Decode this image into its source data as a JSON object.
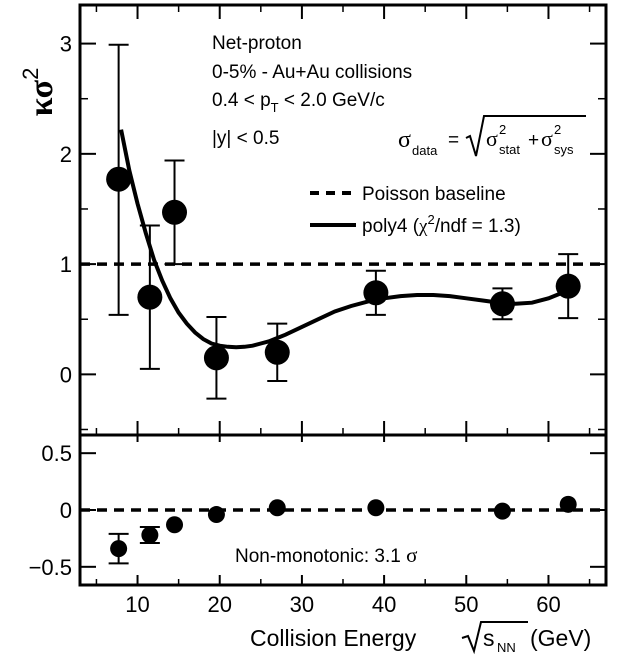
{
  "chart_data": {
    "type": "scatter",
    "xlabel": "Collision Energy",
    "xlabel_unit": "(GeV)",
    "xlabel_sqrt_base": "s",
    "xlabel_sqrt_sub": "NN",
    "xlim": [
      3,
      67
    ],
    "x_ticks": [
      10,
      20,
      30,
      40,
      50,
      60
    ],
    "upper": {
      "ylabel_kappa": "κ",
      "ylabel_sigma": "σ",
      "ylabel_sup": "2",
      "ylim": [
        -0.55,
        3.35
      ],
      "y_ticks": [
        0,
        1,
        2,
        3
      ],
      "points": [
        {
          "x": 7.7,
          "y": 1.77,
          "err_up": 1.22,
          "err_down": 1.23
        },
        {
          "x": 11.5,
          "y": 0.7,
          "err_up": 0.65,
          "err_down": 0.65
        },
        {
          "x": 14.5,
          "y": 1.47,
          "err_up": 0.47,
          "err_down": 0.47
        },
        {
          "x": 19.6,
          "y": 0.15,
          "err_up": 0.37,
          "err_down": 0.37
        },
        {
          "x": 27.0,
          "y": 0.2,
          "err_up": 0.26,
          "err_down": 0.26
        },
        {
          "x": 39.0,
          "y": 0.74,
          "err_up": 0.2,
          "err_down": 0.2
        },
        {
          "x": 54.4,
          "y": 0.64,
          "err_up": 0.14,
          "err_down": 0.14
        },
        {
          "x": 62.4,
          "y": 0.8,
          "err_up": 0.29,
          "err_down": 0.29
        }
      ],
      "baseline_y": 1,
      "fit_curve": [
        [
          8.0,
          2.22
        ],
        [
          9.0,
          1.85
        ],
        [
          10.0,
          1.55
        ],
        [
          11.0,
          1.28
        ],
        [
          12.0,
          1.04
        ],
        [
          13.0,
          0.85
        ],
        [
          14.0,
          0.69
        ],
        [
          15.0,
          0.56
        ],
        [
          16.0,
          0.46
        ],
        [
          17.0,
          0.38
        ],
        [
          18.0,
          0.32
        ],
        [
          19.0,
          0.28
        ],
        [
          20.0,
          0.26
        ],
        [
          21.0,
          0.25
        ],
        [
          22.0,
          0.245
        ],
        [
          23.0,
          0.25
        ],
        [
          24.0,
          0.26
        ],
        [
          25.0,
          0.28
        ],
        [
          26.0,
          0.3
        ],
        [
          27.0,
          0.33
        ],
        [
          28.0,
          0.36
        ],
        [
          30.0,
          0.43
        ],
        [
          32.0,
          0.5
        ],
        [
          34.0,
          0.57
        ],
        [
          36.0,
          0.62
        ],
        [
          38.0,
          0.66
        ],
        [
          40.0,
          0.69
        ],
        [
          42.0,
          0.71
        ],
        [
          44.0,
          0.72
        ],
        [
          46.0,
          0.72
        ],
        [
          48.0,
          0.71
        ],
        [
          50.0,
          0.69
        ],
        [
          52.0,
          0.67
        ],
        [
          54.0,
          0.65
        ],
        [
          56.0,
          0.64
        ],
        [
          58.0,
          0.65
        ],
        [
          60.0,
          0.69
        ],
        [
          62.0,
          0.75
        ],
        [
          63.0,
          0.8
        ]
      ],
      "annotations": {
        "line1": "Net-proton",
        "line2": "0-5% - Au+Au collisions",
        "line3_pre": "0.4 < p",
        "line3_sub": "T",
        "line3_post": " < 2.0 GeV/c",
        "line4": "|y| < 0.5",
        "formula_sigma": "σ",
        "formula_data": "data",
        "formula_eq": "=",
        "formula_stat": "stat",
        "formula_sys": "sys",
        "formula_sq": "2",
        "formula_plus": "+"
      },
      "legend": {
        "position": "right",
        "baseline_label": "Poisson baseline",
        "fit_label_pre": "poly4 (",
        "fit_label_chi": "χ",
        "fit_label_sup": "2",
        "fit_label_post": "/ndf = 1.3)"
      }
    },
    "lower": {
      "ylim": [
        -0.66,
        0.66
      ],
      "y_ticks": [
        -0.5,
        0,
        0.5
      ],
      "y_tick_labels": [
        "−0.5",
        "0",
        "0.5"
      ],
      "points": [
        {
          "x": 7.7,
          "y": -0.34,
          "err_up": 0.13,
          "err_down": 0.13
        },
        {
          "x": 11.5,
          "y": -0.22,
          "err_up": 0.07,
          "err_down": 0.07
        },
        {
          "x": 14.5,
          "y": -0.13,
          "err_up": 0.0,
          "err_down": 0.0
        },
        {
          "x": 19.6,
          "y": -0.04,
          "err_up": 0.0,
          "err_down": 0.0
        },
        {
          "x": 27.0,
          "y": 0.02,
          "err_up": 0.0,
          "err_down": 0.0
        },
        {
          "x": 39.0,
          "y": 0.02,
          "err_up": 0.0,
          "err_down": 0.0
        },
        {
          "x": 54.4,
          "y": -0.01,
          "err_up": 0.0,
          "err_down": 0.0
        },
        {
          "x": 62.4,
          "y": 0.05,
          "err_up": 0.0,
          "err_down": 0.0
        }
      ],
      "baseline_y": 0,
      "annotation_text": "Non-monotonic: 3.1 ",
      "annotation_sigma": "σ"
    }
  }
}
